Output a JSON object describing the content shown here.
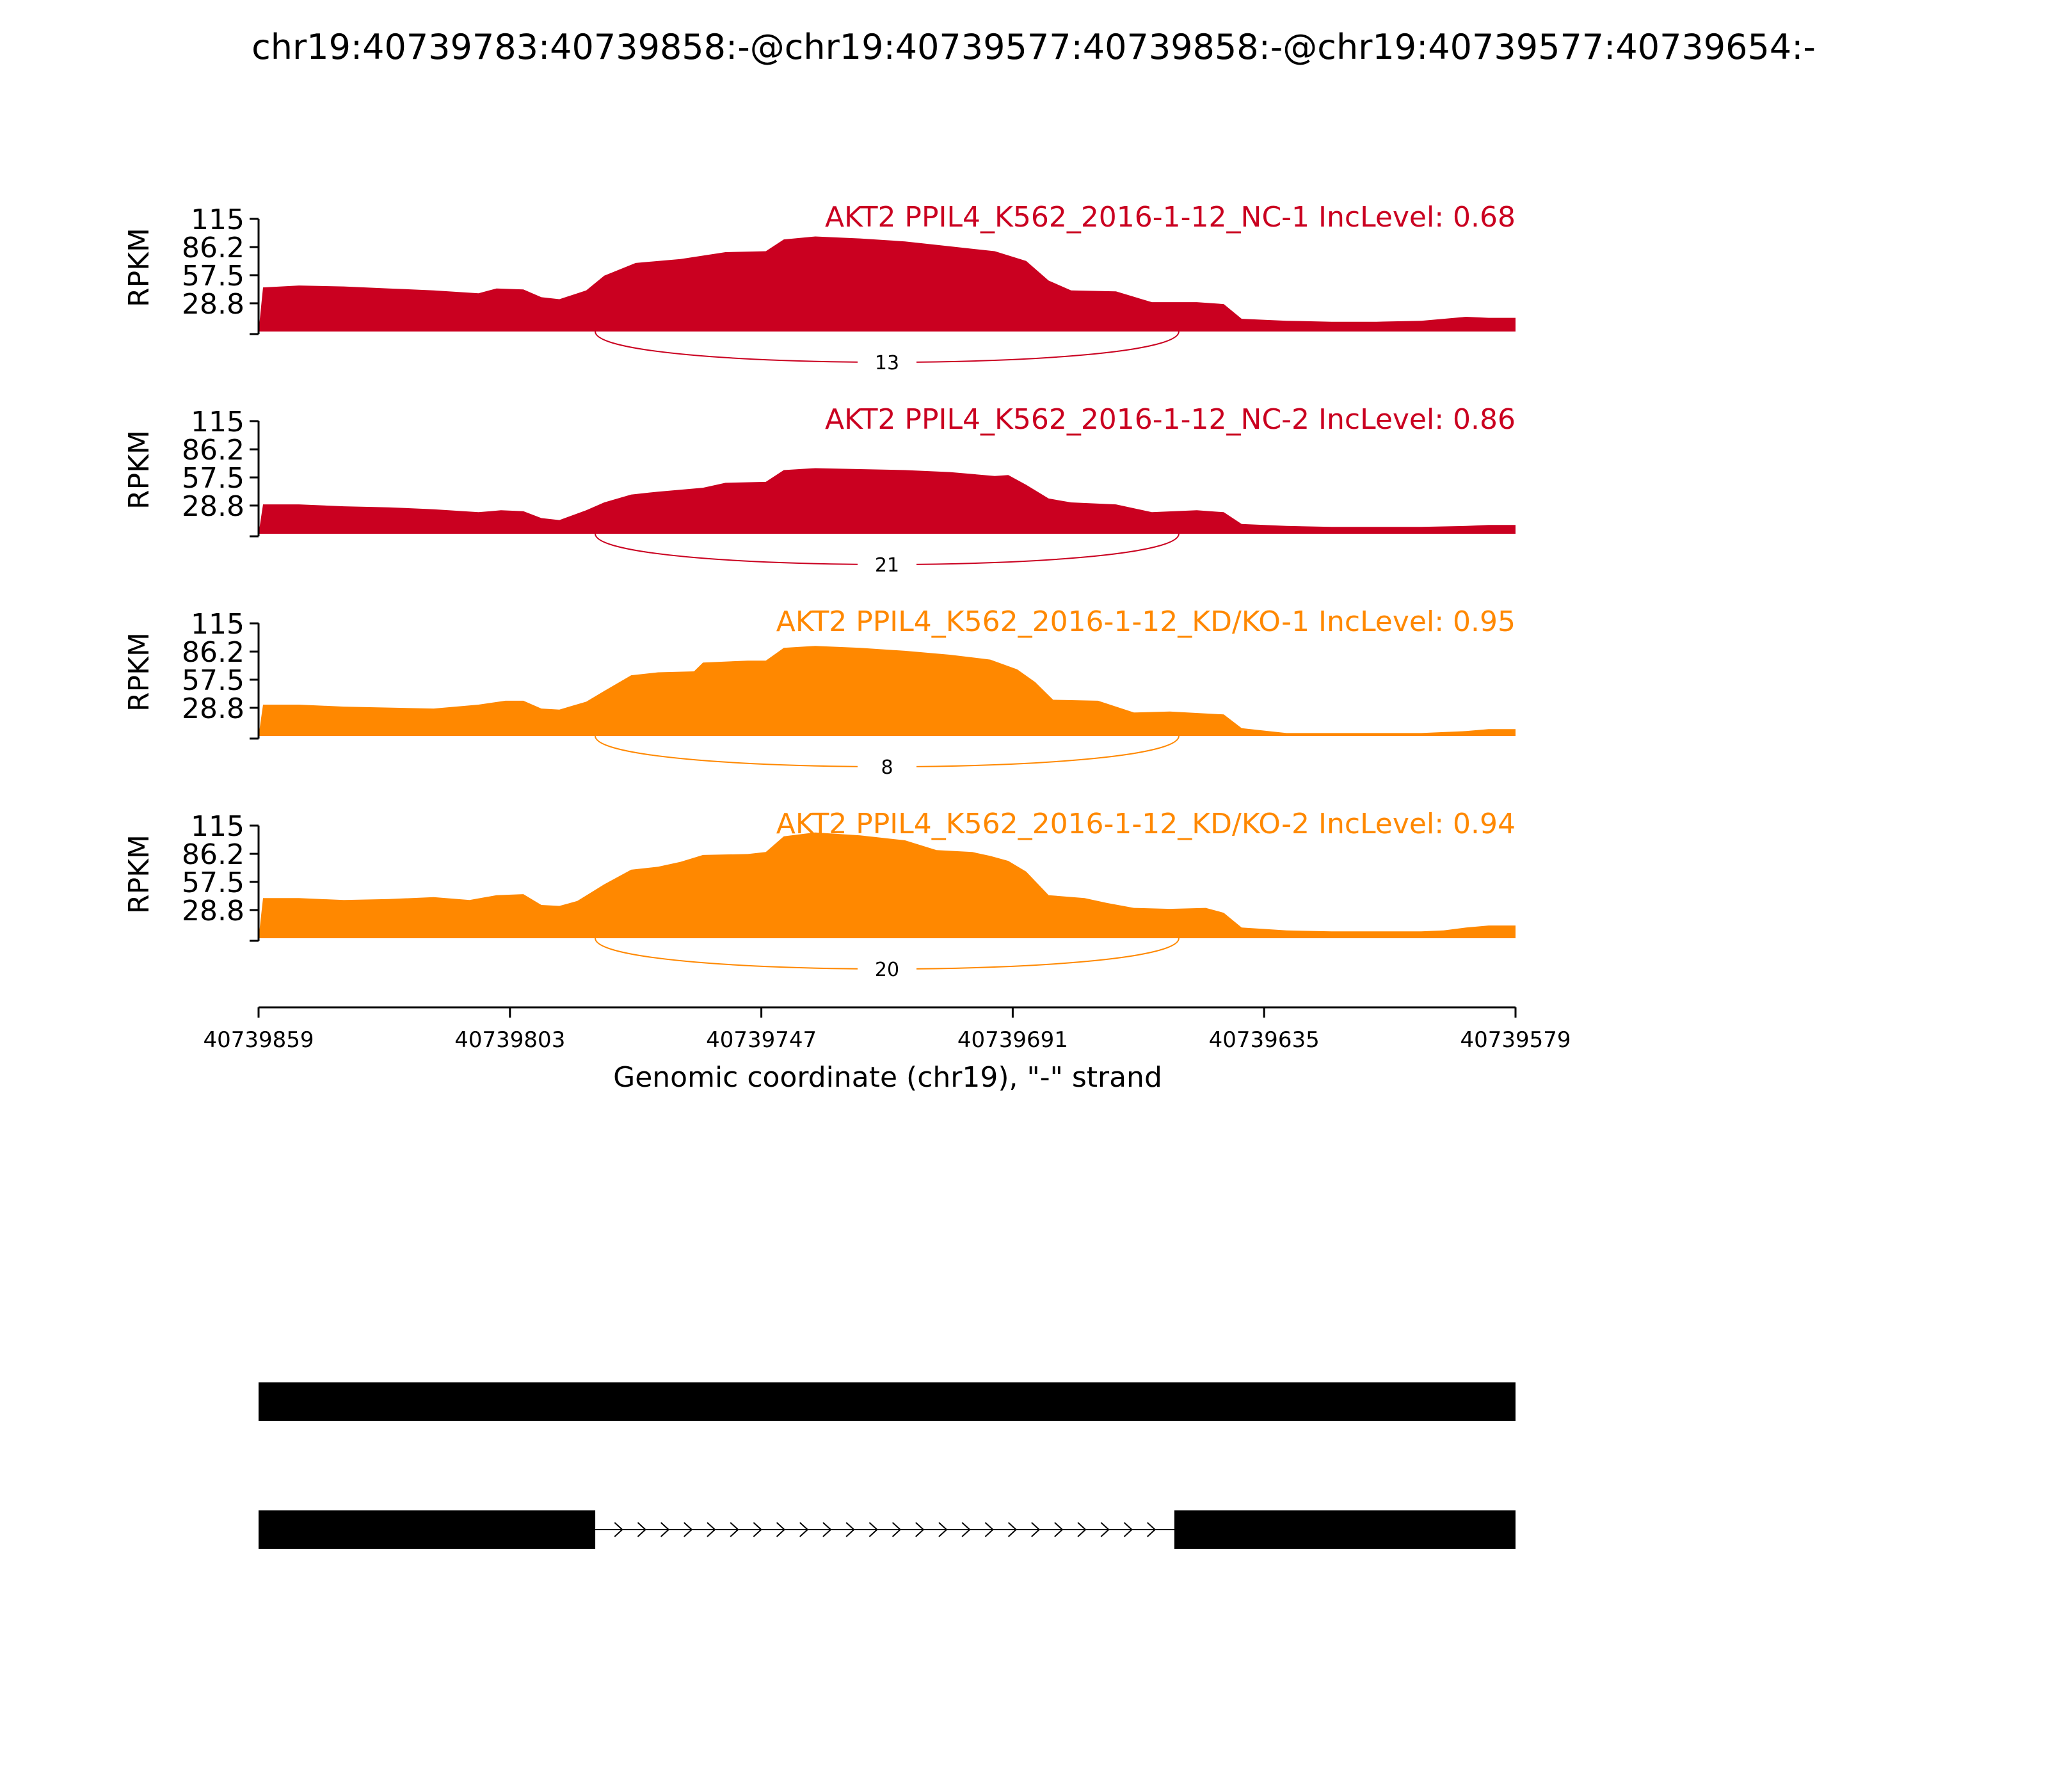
{
  "title": "chr19:40739783:40739858:-@chr19:40739577:40739858:-@chr19:40739577:40739654:-",
  "colors": {
    "nc": "#ca0020",
    "kd": "#ff8800",
    "axis": "#000000"
  },
  "chart_data": {
    "type": "area",
    "title": "chr19:40739783:40739858:-@chr19:40739577:40739858:-@chr19:40739577:40739654:-",
    "ylabel": "RPKM",
    "xlabel": "Genomic coordinate (chr19), \"-\" strand",
    "ylim": [
      0,
      115
    ],
    "yticks": [
      "115",
      "86.2",
      "57.5",
      "28.8"
    ],
    "xlim": [
      40739859,
      40739579
    ],
    "xticks": [
      "40739859",
      "40739803",
      "40739747",
      "40739691",
      "40739635",
      "40739579"
    ],
    "series": [
      {
        "name": "AKT2 PPIL4_K562_2016-1-12_NC-1 IncLevel: 0.68",
        "group": "nc",
        "junction_count": "13",
        "coverage": [
          [
            40739859,
            0
          ],
          [
            40739858,
            45
          ],
          [
            40739850,
            47
          ],
          [
            40739840,
            46
          ],
          [
            40739830,
            44
          ],
          [
            40739820,
            42
          ],
          [
            40739810,
            39
          ],
          [
            40739806,
            44
          ],
          [
            40739800,
            43
          ],
          [
            40739796,
            35
          ],
          [
            40739792,
            33
          ],
          [
            40739786,
            42
          ],
          [
            40739782,
            57
          ],
          [
            40739775,
            70
          ],
          [
            40739765,
            74
          ],
          [
            40739755,
            81
          ],
          [
            40739746,
            82
          ],
          [
            40739742,
            94
          ],
          [
            40739735,
            97
          ],
          [
            40739725,
            95
          ],
          [
            40739715,
            92
          ],
          [
            40739705,
            87
          ],
          [
            40739695,
            82
          ],
          [
            40739688,
            72
          ],
          [
            40739683,
            52
          ],
          [
            40739678,
            42
          ],
          [
            40739668,
            41
          ],
          [
            40739660,
            30
          ],
          [
            40739650,
            30
          ],
          [
            40739644,
            28
          ],
          [
            40739640,
            13
          ],
          [
            40739630,
            11
          ],
          [
            40739620,
            10
          ],
          [
            40739610,
            10
          ],
          [
            40739600,
            11
          ],
          [
            40739590,
            15
          ],
          [
            40739585,
            14
          ],
          [
            40739579,
            14
          ]
        ]
      },
      {
        "name": "AKT2 PPIL4_K562_2016-1-12_NC-2 IncLevel: 0.86",
        "group": "nc",
        "junction_count": "21",
        "coverage": [
          [
            40739859,
            0
          ],
          [
            40739858,
            30
          ],
          [
            40739850,
            30
          ],
          [
            40739840,
            28
          ],
          [
            40739830,
            27
          ],
          [
            40739820,
            25
          ],
          [
            40739810,
            22
          ],
          [
            40739805,
            24
          ],
          [
            40739800,
            23
          ],
          [
            40739796,
            16
          ],
          [
            40739792,
            14
          ],
          [
            40739786,
            24
          ],
          [
            40739782,
            32
          ],
          [
            40739776,
            40
          ],
          [
            40739770,
            43
          ],
          [
            40739760,
            47
          ],
          [
            40739755,
            52
          ],
          [
            40739746,
            53
          ],
          [
            40739742,
            65
          ],
          [
            40739735,
            67
          ],
          [
            40739725,
            66
          ],
          [
            40739715,
            65
          ],
          [
            40739705,
            63
          ],
          [
            40739695,
            59
          ],
          [
            40739692,
            60
          ],
          [
            40739688,
            50
          ],
          [
            40739683,
            36
          ],
          [
            40739678,
            32
          ],
          [
            40739668,
            30
          ],
          [
            40739660,
            22
          ],
          [
            40739650,
            24
          ],
          [
            40739644,
            22
          ],
          [
            40739640,
            10
          ],
          [
            40739630,
            8
          ],
          [
            40739620,
            7
          ],
          [
            40739610,
            7
          ],
          [
            40739600,
            7
          ],
          [
            40739590,
            8
          ],
          [
            40739585,
            9
          ],
          [
            40739579,
            9
          ]
        ]
      },
      {
        "name": "AKT2 PPIL4_K562_2016-1-12_KD/KO-1 IncLevel: 0.95",
        "group": "kd",
        "junction_count": "8",
        "coverage": [
          [
            40739859,
            0
          ],
          [
            40739858,
            32
          ],
          [
            40739850,
            32
          ],
          [
            40739840,
            30
          ],
          [
            40739830,
            29
          ],
          [
            40739820,
            28
          ],
          [
            40739810,
            32
          ],
          [
            40739804,
            36
          ],
          [
            40739800,
            36
          ],
          [
            40739796,
            28
          ],
          [
            40739792,
            27
          ],
          [
            40739786,
            35
          ],
          [
            40739782,
            46
          ],
          [
            40739776,
            62
          ],
          [
            40739770,
            65
          ],
          [
            40739762,
            66
          ],
          [
            40739760,
            75
          ],
          [
            40739750,
            77
          ],
          [
            40739746,
            77
          ],
          [
            40739742,
            90
          ],
          [
            40739735,
            92
          ],
          [
            40739725,
            90
          ],
          [
            40739715,
            87
          ],
          [
            40739705,
            83
          ],
          [
            40739696,
            78
          ],
          [
            40739690,
            68
          ],
          [
            40739686,
            55
          ],
          [
            40739682,
            37
          ],
          [
            40739672,
            36
          ],
          [
            40739664,
            24
          ],
          [
            40739656,
            25
          ],
          [
            40739644,
            22
          ],
          [
            40739640,
            8
          ],
          [
            40739630,
            3
          ],
          [
            40739620,
            3
          ],
          [
            40739610,
            3
          ],
          [
            40739600,
            3
          ],
          [
            40739590,
            5
          ],
          [
            40739585,
            7
          ],
          [
            40739579,
            7
          ]
        ]
      },
      {
        "name": "AKT2 PPIL4_K562_2016-1-12_KD/KO-2 IncLevel: 0.94",
        "group": "kd",
        "junction_count": "20",
        "coverage": [
          [
            40739859,
            0
          ],
          [
            40739858,
            41
          ],
          [
            40739850,
            41
          ],
          [
            40739840,
            39
          ],
          [
            40739830,
            40
          ],
          [
            40739820,
            42
          ],
          [
            40739812,
            39
          ],
          [
            40739806,
            44
          ],
          [
            40739800,
            45
          ],
          [
            40739796,
            34
          ],
          [
            40739792,
            33
          ],
          [
            40739788,
            38
          ],
          [
            40739782,
            55
          ],
          [
            40739776,
            70
          ],
          [
            40739770,
            73
          ],
          [
            40739765,
            78
          ],
          [
            40739760,
            85
          ],
          [
            40739750,
            86
          ],
          [
            40739746,
            88
          ],
          [
            40739742,
            104
          ],
          [
            40739735,
            108
          ],
          [
            40739725,
            105
          ],
          [
            40739715,
            100
          ],
          [
            40739708,
            90
          ],
          [
            40739700,
            88
          ],
          [
            40739696,
            84
          ],
          [
            40739692,
            79
          ],
          [
            40739688,
            68
          ],
          [
            40739683,
            44
          ],
          [
            40739675,
            41
          ],
          [
            40739670,
            36
          ],
          [
            40739664,
            31
          ],
          [
            40739656,
            30
          ],
          [
            40739648,
            31
          ],
          [
            40739644,
            26
          ],
          [
            40739640,
            11
          ],
          [
            40739630,
            8
          ],
          [
            40739620,
            7
          ],
          [
            40739610,
            7
          ],
          [
            40739600,
            7
          ],
          [
            40739595,
            8
          ],
          [
            40739590,
            11
          ],
          [
            40739585,
            13
          ],
          [
            40739579,
            13
          ]
        ]
      }
    ],
    "junction": {
      "start": 40739784,
      "end": 40739654
    },
    "transcripts": [
      {
        "exons": [
          [
            40739859,
            40739579
          ]
        ],
        "introns": []
      },
      {
        "exons": [
          [
            40739859,
            40739784
          ],
          [
            40739655,
            40739579
          ]
        ],
        "introns": [
          [
            40739784,
            40739655
          ]
        ]
      }
    ]
  }
}
